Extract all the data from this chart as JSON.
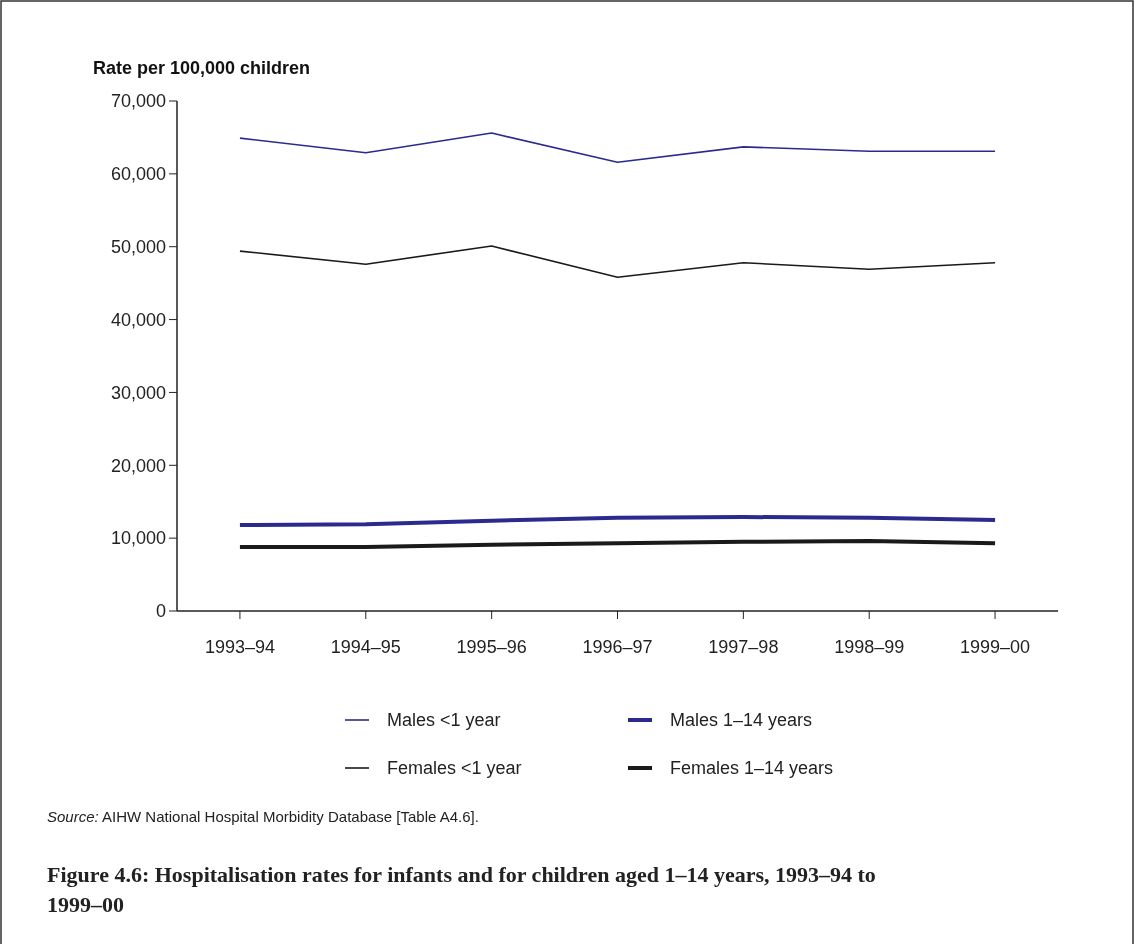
{
  "chart_data": {
    "type": "line",
    "title": "Figure 4.6: Hospitalisation rates for infants and for children aged 1–14 years, 1993–94 to 1999–00",
    "ylabel": "Rate per 100,000 children",
    "categories": [
      "1993–94",
      "1994–95",
      "1995–96",
      "1996–97",
      "1997–98",
      "1998–99",
      "1999–00"
    ],
    "series": [
      {
        "name": "Males <1 year",
        "color": "#2b2b8f",
        "values": [
          64900,
          62900,
          65600,
          61600,
          63700,
          63100,
          63100
        ]
      },
      {
        "name": "Males 1–14 years",
        "color": "#2b2b8f",
        "values": [
          11800,
          11900,
          12400,
          12800,
          12900,
          12800,
          12500
        ]
      },
      {
        "name": "Females <1 year",
        "color": "#1a1a1a",
        "values": [
          49400,
          47600,
          50100,
          45800,
          47800,
          46900,
          47800
        ]
      },
      {
        "name": "Females 1–14 years",
        "color": "#1a1a1a",
        "values": [
          8800,
          8800,
          9100,
          9300,
          9500,
          9600,
          9300
        ]
      }
    ],
    "ylim": [
      0,
      70000
    ],
    "yticks": [
      {
        "value": 0,
        "label": "0"
      },
      {
        "value": 10000,
        "label": "10,000"
      },
      {
        "value": 20000,
        "label": "20,000"
      },
      {
        "value": 30000,
        "label": "30,000"
      },
      {
        "value": 40000,
        "label": "40,000"
      },
      {
        "value": 50000,
        "label": "50,000"
      },
      {
        "value": 60000,
        "label": "60,000"
      },
      {
        "value": 70000,
        "label": "70,000"
      }
    ],
    "grid": false,
    "legend": "bottom",
    "line_style": "solid",
    "marker": "none",
    "annotations": [
      "Source: AIHW National Hospital Morbidity Database [Table A4.6]."
    ]
  }
}
